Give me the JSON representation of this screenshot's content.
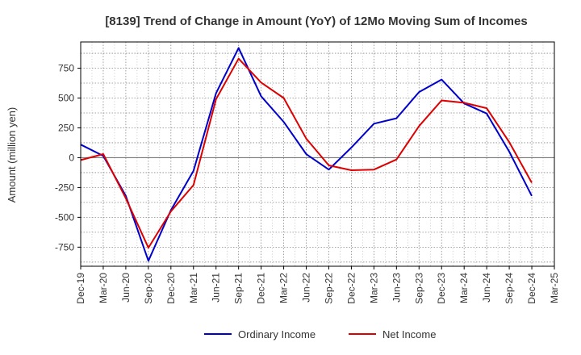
{
  "chart_data": {
    "type": "line",
    "title": "[8139]  Trend of Change in Amount (YoY) of 12Mo Moving Sum of Incomes",
    "xlabel": "",
    "ylabel": "Amount (million yen)",
    "ylim": [
      -910,
      970
    ],
    "yticks": [
      -750,
      -500,
      -250,
      0,
      250,
      500,
      750
    ],
    "ytick_labels": [
      "-750",
      "-500",
      "-250",
      "0",
      "250",
      "500",
      "750"
    ],
    "categories": [
      "Dec-19",
      "Mar-20",
      "Jun-20",
      "Sep-20",
      "Dec-20",
      "Mar-21",
      "Jun-21",
      "Sep-21",
      "Dec-21",
      "Mar-22",
      "Jun-22",
      "Sep-22",
      "Dec-22",
      "Mar-23",
      "Jun-23",
      "Sep-23",
      "Dec-23",
      "Mar-24",
      "Jun-24",
      "Sep-24",
      "Dec-24",
      "Mar-25"
    ],
    "grid": true,
    "legend_position": "bottom-center",
    "series": [
      {
        "name": "Ordinary Income",
        "color": "#0000cc",
        "values": [
          110,
          15,
          -320,
          -865,
          -440,
          -110,
          540,
          920,
          515,
          300,
          30,
          -100,
          85,
          285,
          330,
          550,
          655,
          455,
          370,
          50,
          -320,
          null
        ]
      },
      {
        "name": "Net Income",
        "color": "#dd0000",
        "values": [
          -20,
          30,
          -340,
          -755,
          -450,
          -230,
          490,
          830,
          630,
          500,
          160,
          -65,
          -105,
          -100,
          -15,
          265,
          480,
          460,
          415,
          130,
          -210,
          null
        ]
      }
    ]
  }
}
